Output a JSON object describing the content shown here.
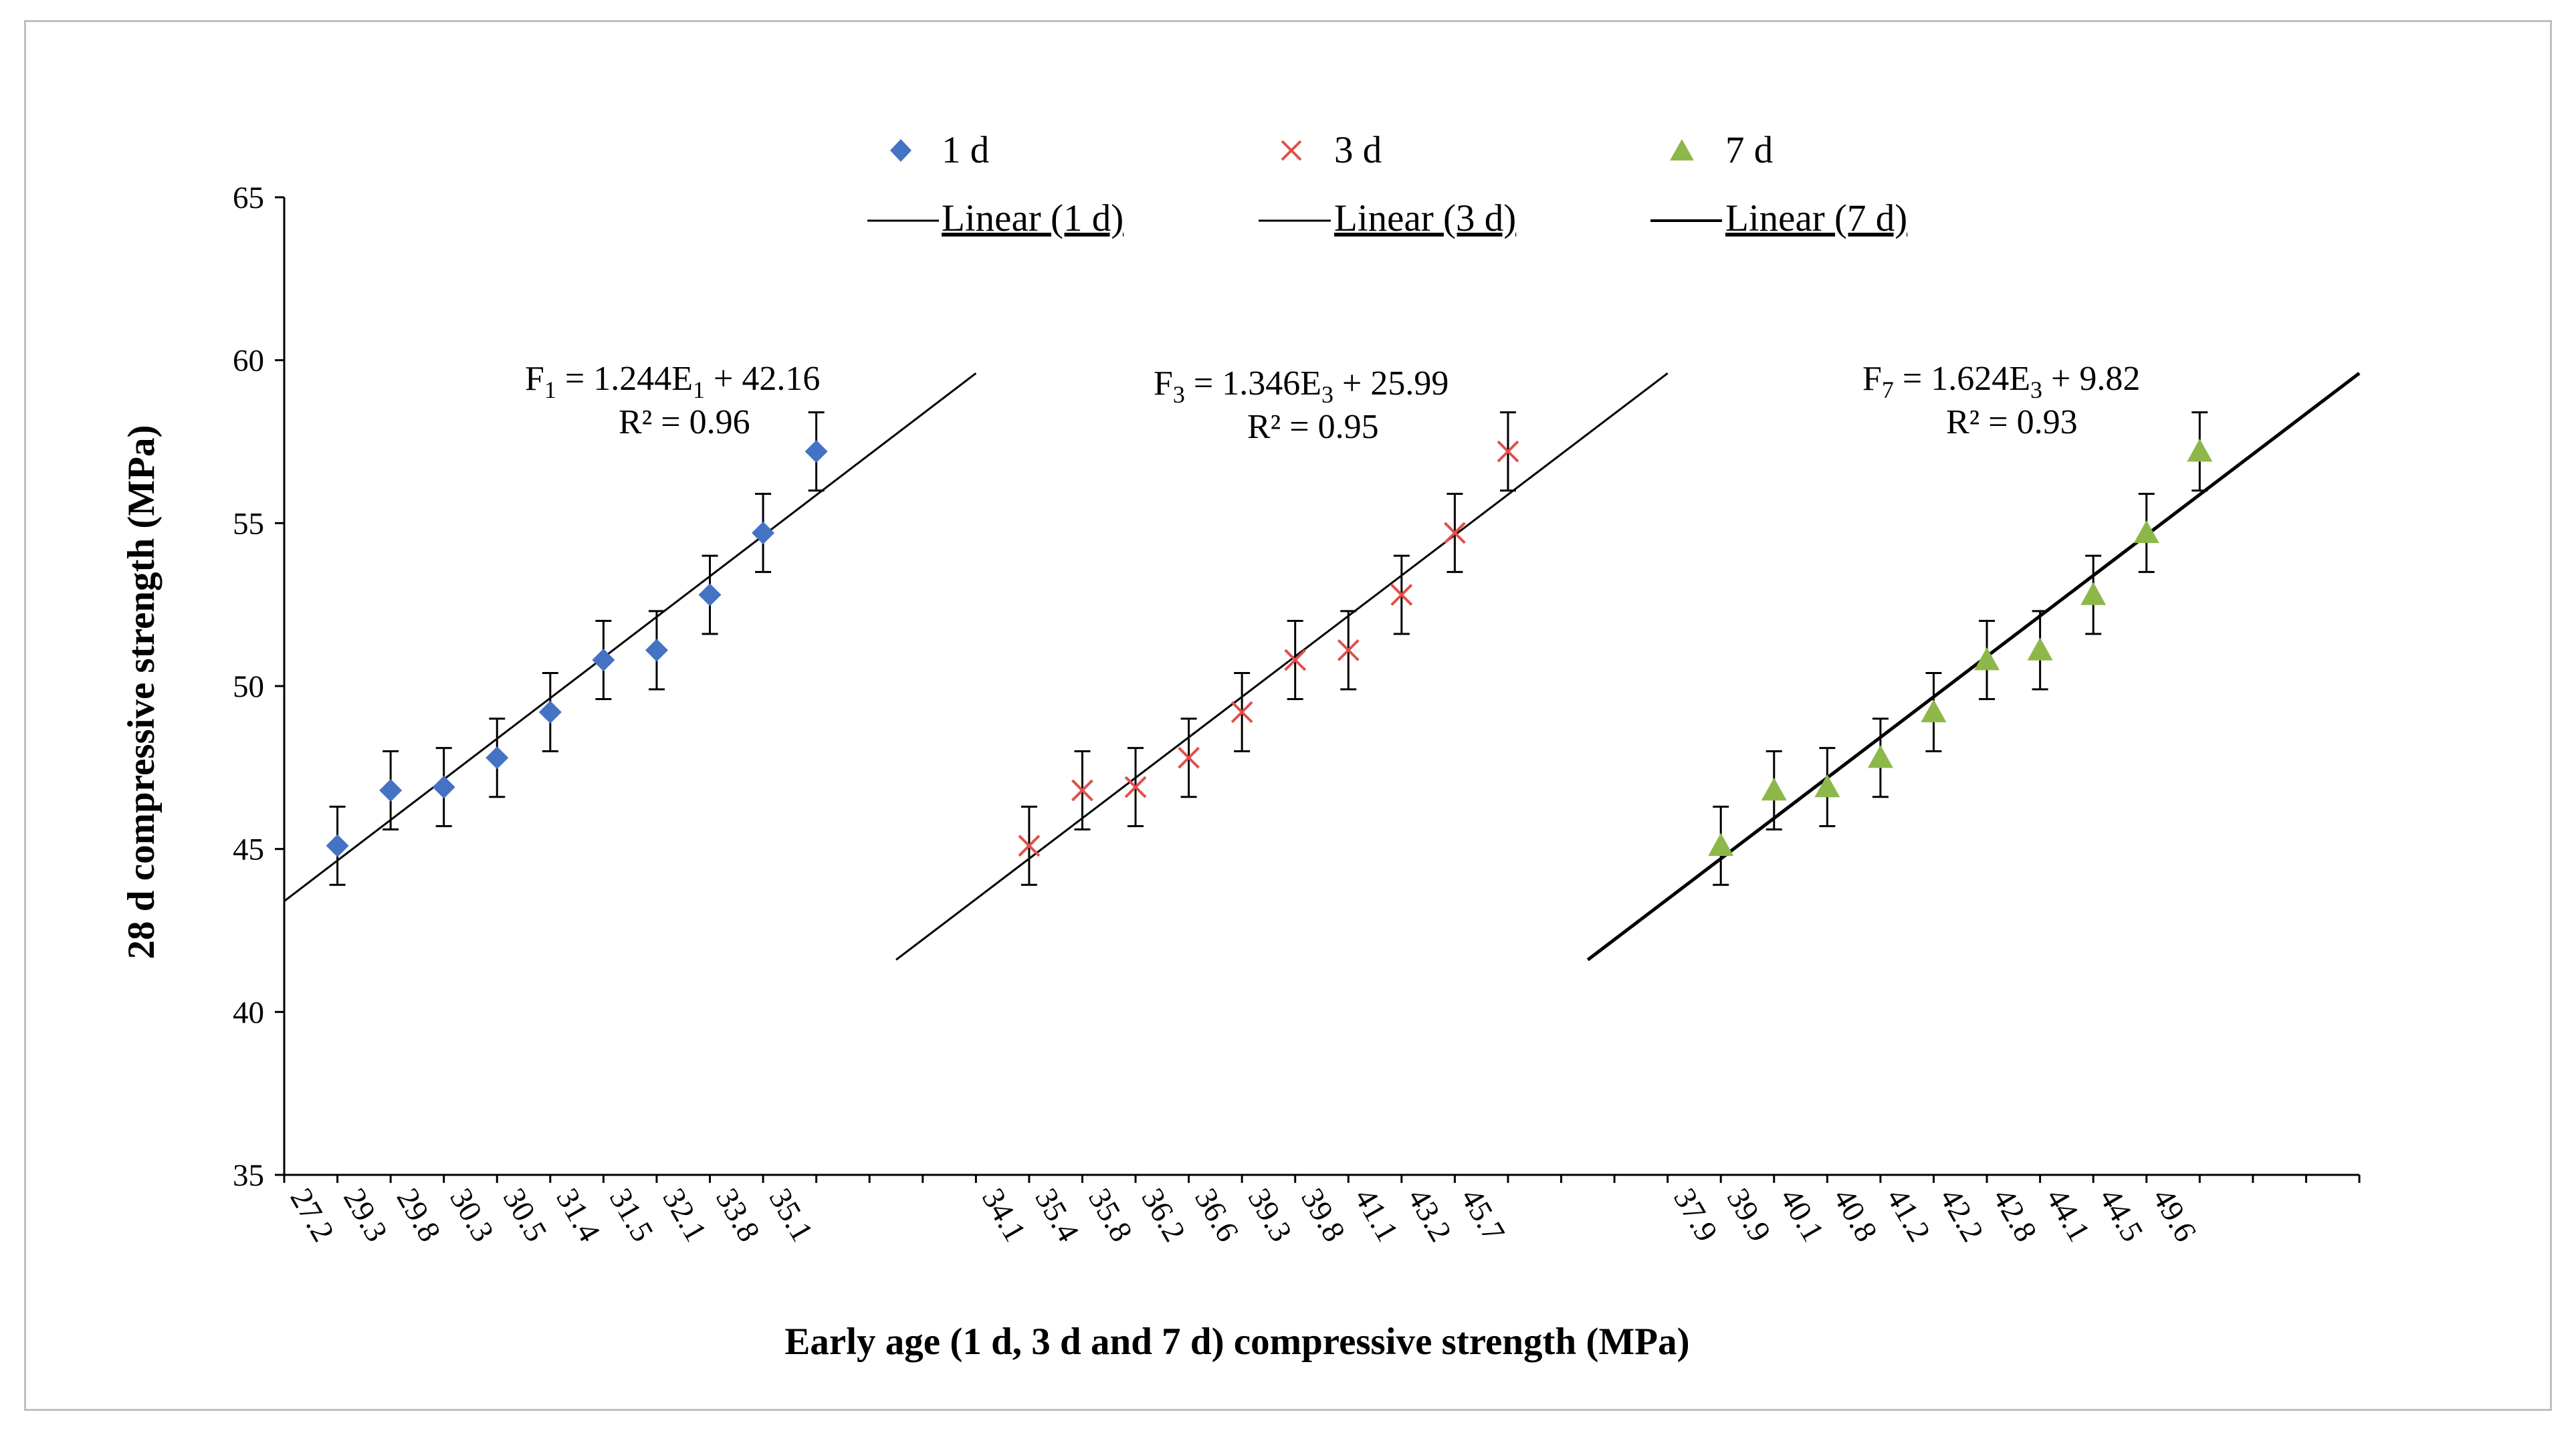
{
  "chart_data": {
    "type": "scatter",
    "title": "",
    "xlabel": "Early age (1 d, 3 d and 7 d) compressive strength (MPa)",
    "ylabel": "28 d compressive strength (MPa)",
    "ylim": [
      35,
      65
    ],
    "yticks": [
      35,
      40,
      45,
      50,
      55,
      60,
      65
    ],
    "x_category_count": 39,
    "x_tick_labels": [
      "27.2",
      "29.3",
      "29.8",
      "30.3",
      "30.5",
      "31.4",
      "31.5",
      "32.1",
      "33.8",
      "35.1",
      "",
      "",
      "",
      "34.1",
      "35.4",
      "35.8",
      "36.2",
      "36.6",
      "39.3",
      "39.8",
      "41.1",
      "43.2",
      "45.7",
      "",
      "",
      "",
      "37.9",
      "39.9",
      "40.1",
      "40.8",
      "41.2",
      "42.2",
      "42.8",
      "44.1",
      "44.5",
      "49.6",
      "",
      "",
      ""
    ],
    "series": [
      {
        "name": "1 d",
        "marker": "diamond",
        "color": "#4472C4",
        "x_index": [
          1,
          2,
          3,
          4,
          5,
          6,
          7,
          8,
          9,
          10
        ],
        "values": [
          45.1,
          46.8,
          46.9,
          47.8,
          49.2,
          50.8,
          51.1,
          52.8,
          54.7,
          57.2
        ],
        "error": [
          1.2,
          1.2,
          1.2,
          1.2,
          1.2,
          1.2,
          1.2,
          1.2,
          1.2,
          1.2
        ],
        "trend": {
          "name": "Linear (1 d)",
          "from_x": 0,
          "to_x": 13,
          "y_start": 43.4,
          "y_end": 59.6,
          "color": "#000000",
          "width": "thin"
        }
      },
      {
        "name": "3 d",
        "marker": "x",
        "color": "#E0504A",
        "x_index": [
          14,
          15,
          16,
          17,
          18,
          19,
          20,
          21,
          22,
          23
        ],
        "values": [
          45.1,
          46.8,
          46.9,
          47.8,
          49.2,
          50.8,
          51.1,
          52.8,
          54.7,
          57.2
        ],
        "error": [
          1.2,
          1.2,
          1.2,
          1.2,
          1.2,
          1.2,
          1.2,
          1.2,
          1.2,
          1.2
        ],
        "trend": {
          "name": "Linear (3 d)",
          "from_x": 11.5,
          "to_x": 26,
          "y_start": 41.6,
          "y_end": 59.6,
          "color": "#000000",
          "width": "thin"
        }
      },
      {
        "name": "7 d",
        "marker": "triangle",
        "color": "#8DB849",
        "x_index": [
          27,
          28,
          29,
          30,
          31,
          32,
          33,
          34,
          35,
          36
        ],
        "values": [
          45.1,
          46.8,
          46.9,
          47.8,
          49.2,
          50.8,
          51.1,
          52.8,
          54.7,
          57.2
        ],
        "error": [
          1.2,
          1.2,
          1.2,
          1.2,
          1.2,
          1.2,
          1.2,
          1.2,
          1.2,
          1.2
        ],
        "trend": {
          "name": "Linear (7 d)",
          "from_x": 24.5,
          "to_x": 39,
          "y_start": 41.6,
          "y_end": 59.6,
          "color": "#000000",
          "width": "thick"
        }
      }
    ],
    "legend": {
      "placement": "top-center",
      "entries": [
        "1 d",
        "3 d",
        "7 d",
        "Linear (1 d)",
        "Linear (3 d)",
        "Linear (7 d)"
      ]
    },
    "annotations": [
      {
        "equation_main": "F",
        "equation_sub1": "1",
        "equation_mid": " = 1.244E",
        "equation_sub2": "1",
        "equation_tail": " + 42.16",
        "r2": "R² = 0.96"
      },
      {
        "equation_main": "F",
        "equation_sub1": "3",
        "equation_mid": " = 1.346E",
        "equation_sub2": "3",
        "equation_tail": " + 25.99",
        "r2": "R² = 0.95"
      },
      {
        "equation_main": "F",
        "equation_sub1": "7",
        "equation_mid": " = 1.624E",
        "equation_sub2": "3",
        "equation_tail": " + 9.82",
        "r2": "R² = 0.93"
      }
    ]
  }
}
